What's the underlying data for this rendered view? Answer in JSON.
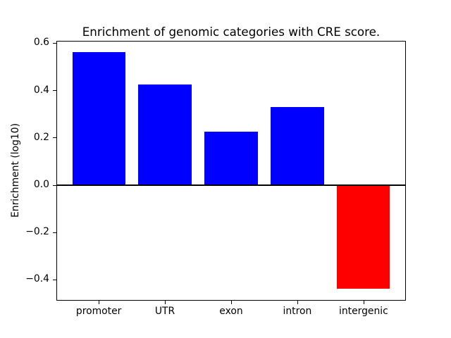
{
  "figure": {
    "background_color": "#ffffff"
  },
  "chart_data": {
    "type": "bar",
    "title": "Enrichment of genomic categories with CRE score.",
    "xlabel": "",
    "ylabel": "Enrichment (log10)",
    "categories": [
      "promoter",
      "UTR",
      "exon",
      "intron",
      "intergenic"
    ],
    "values": [
      0.56,
      0.425,
      0.225,
      0.33,
      -0.44
    ],
    "bar_colors": [
      "#0000ff",
      "#0000ff",
      "#0000ff",
      "#0000ff",
      "#ff0000"
    ],
    "positive_color": "#0000ff",
    "negative_color": "#ff0000",
    "bar_width": 0.8,
    "ylim": [
      -0.49,
      0.61
    ],
    "xlim": [
      -0.64,
      4.64
    ],
    "yticks": [
      0.6,
      0.4,
      0.2,
      0.0,
      -0.2,
      -0.4
    ],
    "ytick_labels": [
      "0.6",
      "0.4",
      "0.2",
      "0.0",
      "−0.2",
      "−0.4"
    ],
    "grid": false,
    "legend": false,
    "zero_line": true,
    "zero_line_color": "#000000",
    "axis_color": "#000000"
  }
}
